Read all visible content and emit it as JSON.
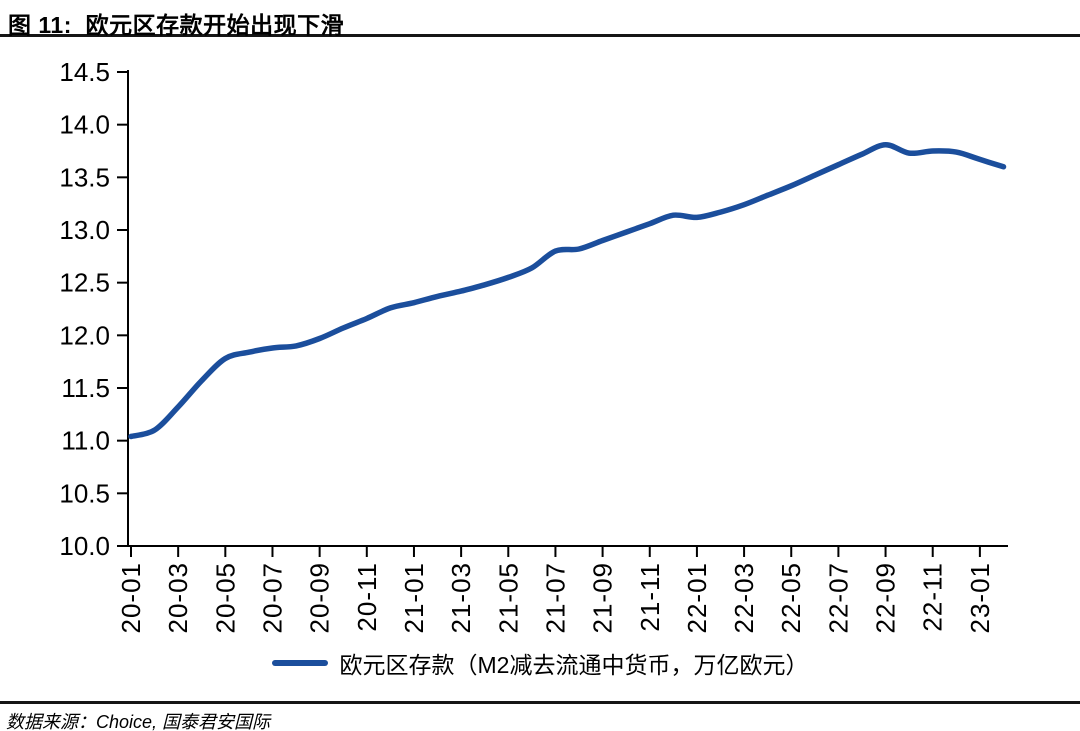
{
  "figure": {
    "title": "图 11:  欧元区存款开始出现下滑",
    "source": "数据来源：Choice, 国泰君安国际"
  },
  "legend": {
    "label": "欧元区存款（M2减去流通中货币，万亿欧元）"
  },
  "colors": {
    "line": "#1b4e9c",
    "axis": "#000000",
    "rule": "#161616",
    "text": "#000000"
  },
  "chart_data": {
    "type": "line",
    "title": "欧元区存款开始出现下滑",
    "xlabel": "",
    "ylabel": "",
    "ylim": [
      10.0,
      14.5
    ],
    "grid": false,
    "legend_position": "bottom",
    "y_ticks": [
      10.0,
      10.5,
      11.0,
      11.5,
      12.0,
      12.5,
      13.0,
      13.5,
      14.0,
      14.5
    ],
    "x_tick_labels": [
      "20-01",
      "20-03",
      "20-05",
      "20-07",
      "20-09",
      "20-11",
      "21-01",
      "21-03",
      "21-05",
      "21-07",
      "21-09",
      "21-11",
      "22-01",
      "22-03",
      "22-05",
      "22-07",
      "22-09",
      "22-11",
      "23-01"
    ],
    "categories": [
      "20-01",
      "20-02",
      "20-03",
      "20-04",
      "20-05",
      "20-06",
      "20-07",
      "20-08",
      "20-09",
      "20-10",
      "20-11",
      "20-12",
      "21-01",
      "21-02",
      "21-03",
      "21-04",
      "21-05",
      "21-06",
      "21-07",
      "21-08",
      "21-09",
      "21-10",
      "21-11",
      "21-12",
      "22-01",
      "22-02",
      "22-03",
      "22-04",
      "22-05",
      "22-06",
      "22-07",
      "22-08",
      "22-09",
      "22-10",
      "22-11",
      "22-12",
      "23-01",
      "23-02"
    ],
    "series": [
      {
        "name": "欧元区存款（M2减去流通中货币，万亿欧元）",
        "values": [
          11.04,
          11.1,
          11.32,
          11.57,
          11.78,
          11.84,
          11.88,
          11.9,
          11.97,
          12.07,
          12.16,
          12.26,
          12.31,
          12.37,
          12.42,
          12.48,
          12.55,
          12.64,
          12.8,
          12.82,
          12.9,
          12.98,
          13.06,
          13.14,
          13.12,
          13.17,
          13.24,
          13.33,
          13.42,
          13.52,
          13.62,
          13.72,
          13.81,
          13.73,
          13.75,
          13.74,
          13.67,
          13.6
        ]
      }
    ]
  }
}
